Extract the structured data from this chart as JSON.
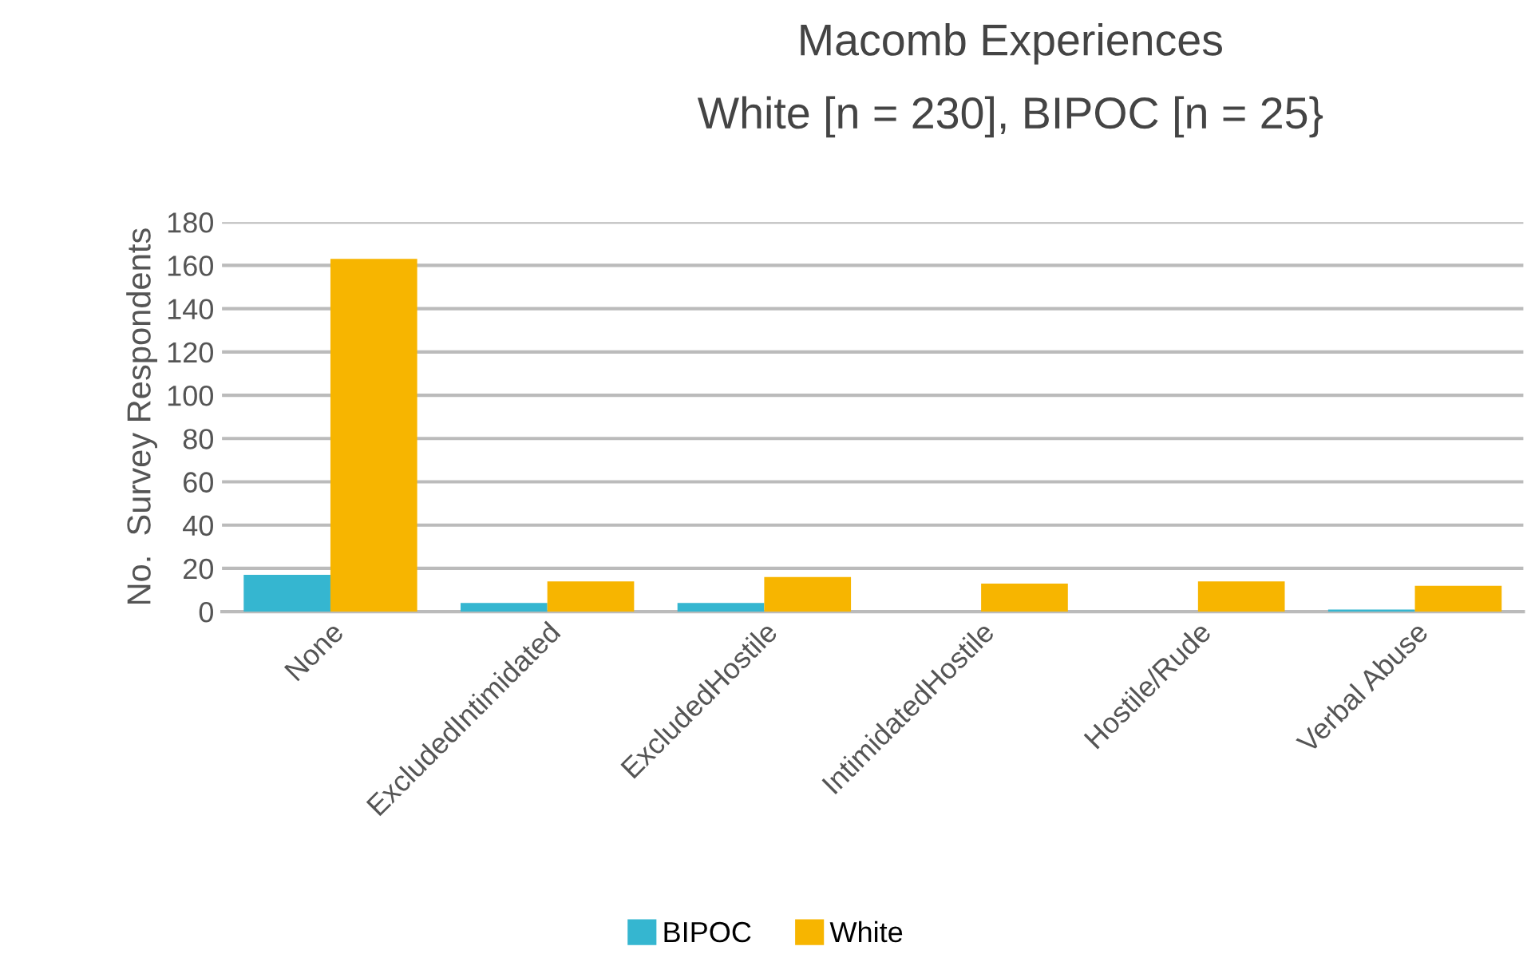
{
  "chart_data": {
    "type": "bar",
    "title": "Macomb Experiences",
    "subtitle": "White [n = 230], BIPOC [n = 25}",
    "ylabel": "No.  Survey Respondents",
    "categories": [
      "None",
      "ExcludedIntimidated",
      "ExcludedHostile",
      "IntimidatedHostile",
      "Hostile/Rude",
      "Verbal Abuse"
    ],
    "series": [
      {
        "name": "BIPOC",
        "color": "#35b6d0",
        "values": [
          17,
          4,
          4,
          0,
          0,
          1
        ]
      },
      {
        "name": "White",
        "color": "#f7b500",
        "values": [
          163,
          14,
          16,
          13,
          14,
          12
        ]
      }
    ],
    "ylim": [
      0,
      180
    ],
    "yticks": [
      0,
      20,
      40,
      60,
      80,
      100,
      120,
      140,
      160,
      180
    ],
    "grid": "y",
    "legend": "bottom"
  }
}
